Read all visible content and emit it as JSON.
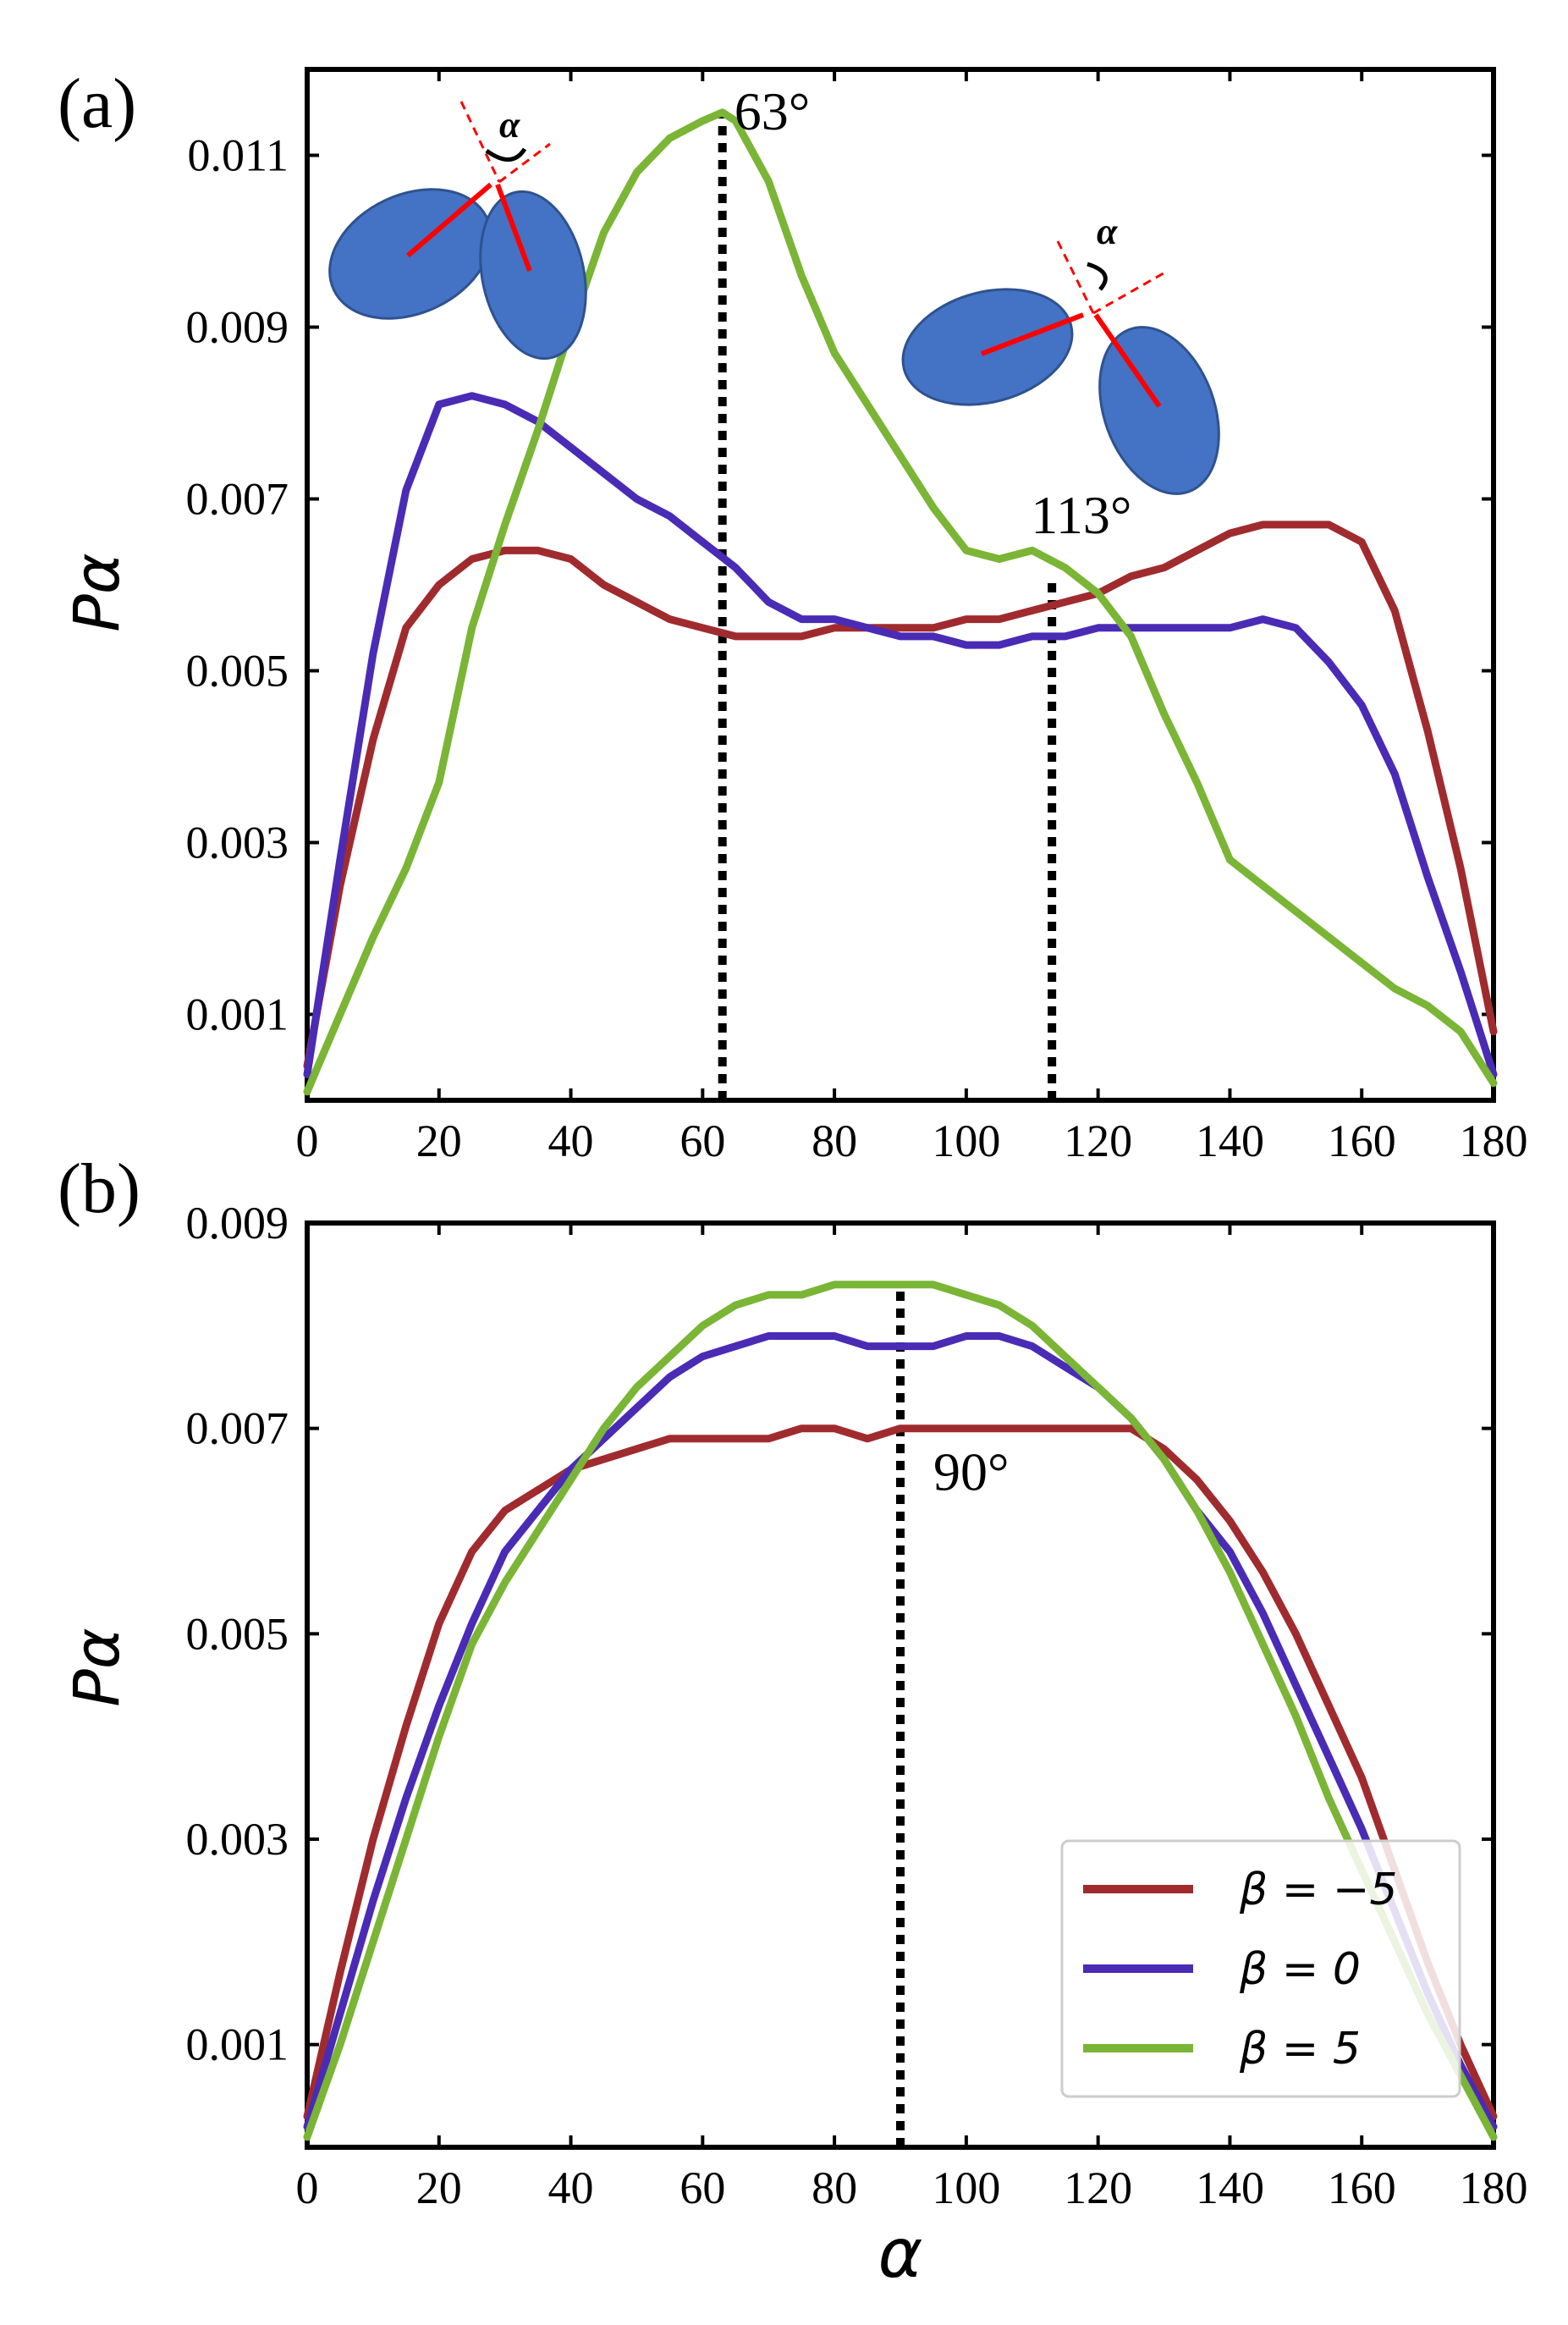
{
  "colors": {
    "beta_neg5": "#a02b2e",
    "beta_0": "#4a2bb5",
    "beta_5": "#7ab536",
    "ellipse_fill": "#4472c4",
    "ellipse_stroke": "#2f528f",
    "arrow": "#ff0000",
    "axis": "#000000"
  },
  "legend": {
    "entries": [
      "β = −5",
      "β = 0",
      "β = 5"
    ],
    "position": "lower-right"
  },
  "chart_data": [
    {
      "type": "line",
      "panel_label": "(a)",
      "xlabel": "α",
      "ylabel": "Pα",
      "xlim": [
        0,
        180
      ],
      "ylim": [
        0,
        0.012
      ],
      "xticks": [
        "0",
        "20",
        "40",
        "60",
        "80",
        "100",
        "120",
        "140",
        "160",
        "180"
      ],
      "yticks": [
        "0.001",
        "0.003",
        "0.005",
        "0.007",
        "0.009",
        "0.011"
      ],
      "ytick_values": [
        0.001,
        0.003,
        0.005,
        0.007,
        0.009,
        0.011
      ],
      "vlines": [
        63,
        113
      ],
      "annotations": [
        {
          "text": "63°",
          "x": 63,
          "y": 0.0113
        },
        {
          "text": "113°",
          "x": 108,
          "y": 0.0066
        },
        {
          "text": "α",
          "x": 30,
          "y": 0.0113
        },
        {
          "text": "α",
          "x": 120,
          "y": 0.0101
        }
      ],
      "series": [
        {
          "name": "β = −5",
          "color_key": "beta_neg5",
          "x": [
            0,
            5,
            10,
            15,
            20,
            25,
            30,
            35,
            40,
            45,
            50,
            55,
            60,
            65,
            70,
            75,
            80,
            85,
            90,
            95,
            100,
            105,
            110,
            115,
            120,
            125,
            130,
            135,
            140,
            145,
            150,
            155,
            160,
            165,
            170,
            175,
            180
          ],
          "y": [
            0.0004,
            0.0025,
            0.0042,
            0.0055,
            0.006,
            0.0063,
            0.0064,
            0.0064,
            0.0063,
            0.006,
            0.0058,
            0.0056,
            0.0055,
            0.0054,
            0.0054,
            0.0054,
            0.0055,
            0.0055,
            0.0055,
            0.0055,
            0.0056,
            0.0056,
            0.0057,
            0.0058,
            0.0059,
            0.0061,
            0.0062,
            0.0064,
            0.0066,
            0.0067,
            0.0067,
            0.0067,
            0.0065,
            0.0057,
            0.0043,
            0.0027,
            0.0008
          ]
        },
        {
          "name": "β = 0",
          "color_key": "beta_0",
          "x": [
            0,
            5,
            10,
            15,
            20,
            25,
            30,
            35,
            40,
            45,
            50,
            55,
            60,
            65,
            70,
            75,
            80,
            85,
            90,
            95,
            100,
            105,
            110,
            115,
            120,
            125,
            130,
            135,
            140,
            145,
            150,
            155,
            160,
            165,
            170,
            175,
            180
          ],
          "y": [
            0.0003,
            0.0028,
            0.0052,
            0.0071,
            0.0081,
            0.0082,
            0.0081,
            0.0079,
            0.0076,
            0.0073,
            0.007,
            0.0068,
            0.0065,
            0.0062,
            0.0058,
            0.0056,
            0.0056,
            0.0055,
            0.0054,
            0.0054,
            0.0053,
            0.0053,
            0.0054,
            0.0054,
            0.0055,
            0.0055,
            0.0055,
            0.0055,
            0.0055,
            0.0056,
            0.0055,
            0.0051,
            0.0046,
            0.0038,
            0.0026,
            0.0015,
            0.0003
          ]
        },
        {
          "name": "β = 5",
          "color_key": "beta_5",
          "x": [
            0,
            5,
            10,
            15,
            20,
            25,
            30,
            35,
            40,
            45,
            50,
            55,
            60,
            63,
            65,
            70,
            75,
            80,
            85,
            90,
            95,
            100,
            105,
            110,
            115,
            120,
            125,
            130,
            135,
            140,
            145,
            150,
            155,
            160,
            165,
            170,
            175,
            180
          ],
          "y": [
            0.0001,
            0.001,
            0.0019,
            0.0027,
            0.0037,
            0.0055,
            0.0067,
            0.0078,
            0.009,
            0.0101,
            0.0108,
            0.0112,
            0.0114,
            0.0115,
            0.0114,
            0.0107,
            0.0096,
            0.0087,
            0.0081,
            0.0075,
            0.0069,
            0.0064,
            0.0063,
            0.0064,
            0.0062,
            0.0059,
            0.0054,
            0.0045,
            0.0037,
            0.0028,
            0.0025,
            0.0022,
            0.0019,
            0.0016,
            0.0013,
            0.0011,
            0.0008,
            0.0002
          ]
        }
      ]
    },
    {
      "type": "line",
      "panel_label": "(b)",
      "xlabel": "α",
      "ylabel": "Pα",
      "xlim": [
        0,
        180
      ],
      "ylim": [
        0,
        0.009
      ],
      "xticks": [
        "0",
        "20",
        "40",
        "60",
        "80",
        "100",
        "120",
        "140",
        "160",
        "180"
      ],
      "yticks": [
        "0.001",
        "0.003",
        "0.005",
        "0.007",
        "0.009"
      ],
      "ytick_values": [
        0.001,
        0.003,
        0.005,
        0.007,
        0.009
      ],
      "vlines": [
        90
      ],
      "annotations": [
        {
          "text": "90°",
          "x": 95,
          "y": 0.0064
        }
      ],
      "series": [
        {
          "name": "β = −5",
          "color_key": "beta_neg5",
          "x": [
            0,
            5,
            10,
            15,
            20,
            25,
            30,
            35,
            40,
            45,
            50,
            55,
            60,
            65,
            70,
            75,
            80,
            85,
            90,
            95,
            100,
            105,
            110,
            115,
            120,
            125,
            130,
            135,
            140,
            145,
            150,
            155,
            160,
            165,
            170,
            175,
            180
          ],
          "y": [
            0.0003,
            0.0017,
            0.003,
            0.0041,
            0.0051,
            0.0058,
            0.0062,
            0.0064,
            0.0066,
            0.0067,
            0.0068,
            0.0069,
            0.0069,
            0.0069,
            0.0069,
            0.007,
            0.007,
            0.0069,
            0.007,
            0.007,
            0.007,
            0.007,
            0.007,
            0.007,
            0.007,
            0.007,
            0.0068,
            0.0065,
            0.0061,
            0.0056,
            0.005,
            0.0043,
            0.0036,
            0.0027,
            0.0018,
            0.001,
            0.0003
          ]
        },
        {
          "name": "β = 0",
          "color_key": "beta_0",
          "x": [
            0,
            5,
            10,
            15,
            20,
            25,
            30,
            35,
            40,
            45,
            50,
            55,
            60,
            65,
            70,
            75,
            80,
            85,
            90,
            95,
            100,
            105,
            110,
            115,
            120,
            125,
            130,
            135,
            140,
            145,
            150,
            155,
            160,
            165,
            170,
            175,
            180
          ],
          "y": [
            0.0002,
            0.0013,
            0.0024,
            0.0034,
            0.0043,
            0.0051,
            0.0058,
            0.0062,
            0.0066,
            0.0069,
            0.0072,
            0.0075,
            0.0077,
            0.0078,
            0.0079,
            0.0079,
            0.0079,
            0.0078,
            0.0078,
            0.0078,
            0.0079,
            0.0079,
            0.0078,
            0.0076,
            0.0074,
            0.0071,
            0.0067,
            0.0062,
            0.0058,
            0.0052,
            0.0045,
            0.0038,
            0.0031,
            0.0023,
            0.0015,
            0.0008,
            0.0002
          ]
        },
        {
          "name": "β = 5",
          "color_key": "beta_5",
          "x": [
            0,
            5,
            10,
            15,
            20,
            25,
            30,
            35,
            40,
            45,
            50,
            55,
            60,
            65,
            70,
            75,
            80,
            85,
            90,
            95,
            100,
            105,
            110,
            115,
            120,
            125,
            130,
            135,
            140,
            145,
            150,
            155,
            160,
            165,
            170,
            175,
            180
          ],
          "y": [
            0.0001,
            0.001,
            0.002,
            0.003,
            0.004,
            0.0049,
            0.0055,
            0.006,
            0.0065,
            0.007,
            0.0074,
            0.0077,
            0.008,
            0.0082,
            0.0083,
            0.0083,
            0.0084,
            0.0084,
            0.0084,
            0.0084,
            0.0083,
            0.0082,
            0.008,
            0.0077,
            0.0074,
            0.0071,
            0.0067,
            0.0062,
            0.0056,
            0.0049,
            0.0042,
            0.0034,
            0.0027,
            0.002,
            0.0013,
            0.0007,
            0.0001
          ]
        }
      ]
    }
  ]
}
